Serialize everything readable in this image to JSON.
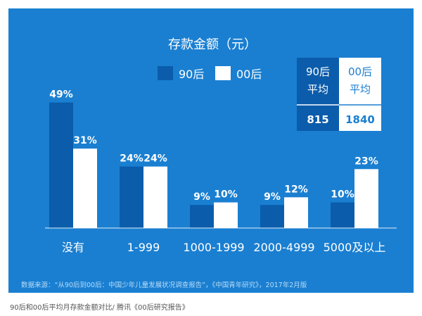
{
  "chart_data": {
    "type": "bar",
    "title": "存款金额（元）",
    "categories": [
      "没有",
      "1-999",
      "1000-1999",
      "2000-4999",
      "5000及以上"
    ],
    "series": [
      {
        "name": "90后",
        "values": [
          49,
          24,
          9,
          9,
          10
        ],
        "labels": [
          "49%",
          "24%",
          "9%",
          "9%",
          "10%"
        ],
        "color": "#0b5cab"
      },
      {
        "name": "00后",
        "values": [
          31,
          24,
          10,
          12,
          23
        ],
        "labels": [
          "31%",
          "24%",
          "10%",
          "12%",
          "23%"
        ],
        "color": "#ffffff"
      }
    ],
    "ylim": [
      0,
      50
    ],
    "grid": false,
    "legend_placement": "top-center",
    "avg_table": {
      "headers": [
        "90后\n平均",
        "00后\n平均"
      ],
      "values": [
        "815",
        "1840"
      ]
    },
    "source": "数据来源：“从90后到00后：中国少年儿童发展状况调查报告”，《中国青年研究》，2017年2月版",
    "background_color": "#1a7fd1"
  },
  "caption": "90后和00后平均月存款金额对比/ 腾讯《00后研究报告》"
}
